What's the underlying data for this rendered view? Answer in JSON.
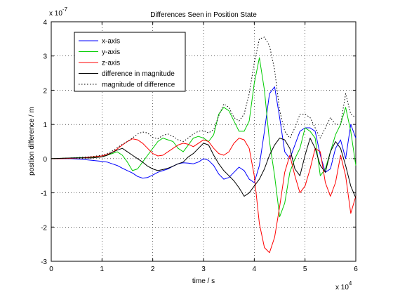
{
  "chart_data": {
    "type": "line",
    "title": "Differences Seen in Position State",
    "xlabel": "time / s",
    "ylabel": "position difference / m",
    "x_multiplier_label": "x 10",
    "x_multiplier_exp": "4",
    "y_multiplier_label": "x 10",
    "y_multiplier_exp": "-7",
    "xlim": [
      0,
      6
    ],
    "ylim": [
      -3,
      4
    ],
    "xticks": [
      0,
      1,
      2,
      3,
      4,
      5,
      6
    ],
    "yticks": [
      -3,
      -2,
      -1,
      0,
      1,
      2,
      3,
      4
    ],
    "grid": true,
    "legend_position": "top-left",
    "x": [
      0,
      0.2,
      0.4,
      0.6,
      0.8,
      1.0,
      1.1,
      1.2,
      1.3,
      1.4,
      1.5,
      1.6,
      1.7,
      1.8,
      1.9,
      2.0,
      2.1,
      2.2,
      2.3,
      2.4,
      2.5,
      2.6,
      2.7,
      2.8,
      2.9,
      3.0,
      3.1,
      3.2,
      3.3,
      3.4,
      3.5,
      3.6,
      3.7,
      3.8,
      3.9,
      4.0,
      4.1,
      4.2,
      4.3,
      4.4,
      4.5,
      4.6,
      4.7,
      4.8,
      4.9,
      5.0,
      5.1,
      5.2,
      5.3,
      5.4,
      5.5,
      5.6,
      5.7,
      5.8,
      5.9,
      6.0
    ],
    "series": [
      {
        "name": "x-axis",
        "color": "#0000ff",
        "dash": "",
        "values": [
          0,
          0,
          0,
          -0.02,
          -0.05,
          -0.08,
          -0.1,
          -0.15,
          -0.2,
          -0.28,
          -0.35,
          -0.42,
          -0.52,
          -0.57,
          -0.55,
          -0.48,
          -0.4,
          -0.35,
          -0.3,
          -0.22,
          -0.15,
          -0.12,
          -0.13,
          -0.15,
          -0.1,
          0.0,
          -0.05,
          -0.2,
          -0.45,
          -0.6,
          -0.55,
          -0.4,
          -0.25,
          -0.35,
          -0.6,
          -0.7,
          -0.2,
          0.8,
          1.9,
          2.1,
          1.2,
          0.2,
          0.0,
          0.4,
          0.8,
          0.9,
          0.9,
          0.8,
          0.1,
          -0.4,
          -0.3,
          0.3,
          0.55,
          0.0,
          1.0,
          0.6
        ]
      },
      {
        "name": "y-axis",
        "color": "#00cc00",
        "dash": "",
        "values": [
          0,
          0.01,
          0.02,
          0.03,
          0.04,
          0.05,
          0.1,
          0.15,
          0.2,
          0.1,
          -0.1,
          -0.35,
          -0.3,
          -0.1,
          0.1,
          0.3,
          0.5,
          0.6,
          0.55,
          0.5,
          0.3,
          0.2,
          0.4,
          0.6,
          0.65,
          0.6,
          0.5,
          0.7,
          1.3,
          1.5,
          1.4,
          1.1,
          0.8,
          0.8,
          1.1,
          2.2,
          2.95,
          2.0,
          0.5,
          -0.5,
          -1.7,
          -1.3,
          -0.4,
          0.0,
          0.3,
          0.9,
          0.8,
          0.6,
          -0.5,
          -0.3,
          0.2,
          0.7,
          1.0,
          1.5,
          0.8,
          -0.2
        ]
      },
      {
        "name": "z-axis",
        "color": "#ff0000",
        "dash": "",
        "values": [
          0,
          0,
          0.01,
          0.02,
          0.05,
          0.08,
          0.12,
          0.18,
          0.28,
          0.4,
          0.5,
          0.58,
          0.55,
          0.45,
          0.3,
          0.15,
          0.08,
          0.1,
          0.2,
          0.3,
          0.4,
          0.45,
          0.42,
          0.35,
          0.45,
          0.55,
          0.5,
          0.3,
          0.15,
          0.1,
          0.2,
          0.45,
          0.6,
          0.55,
          0.3,
          -0.5,
          -1.9,
          -2.6,
          -2.75,
          -2.3,
          -1.4,
          -0.4,
          0.1,
          -0.5,
          -1.0,
          -0.8,
          -0.3,
          0.3,
          0.2,
          -0.7,
          -1.1,
          -0.7,
          0.1,
          -0.5,
          -1.6,
          -1.1
        ]
      },
      {
        "name": "difference in magnitude",
        "color": "#000000",
        "dash": "",
        "values": [
          0,
          0.01,
          0.02,
          0.02,
          0.02,
          0.05,
          0.1,
          0.18,
          0.25,
          0.3,
          0.2,
          0.1,
          0.0,
          -0.1,
          -0.22,
          -0.3,
          -0.35,
          -0.32,
          -0.28,
          -0.22,
          -0.15,
          -0.1,
          0.05,
          0.15,
          0.3,
          0.45,
          0.4,
          0.1,
          -0.15,
          -0.35,
          -0.5,
          -0.65,
          -0.85,
          -1.1,
          -1.0,
          -0.8,
          -0.6,
          -0.3,
          0.1,
          0.4,
          0.6,
          0.55,
          0.3,
          -0.3,
          -0.5,
          0.1,
          0.6,
          0.3,
          -0.2,
          -0.4,
          0.2,
          0.5,
          0.3,
          -0.2,
          -0.8,
          -1.15
        ]
      },
      {
        "name": "magnitude of difference",
        "color": "#000000",
        "dash": "1.5 2.5",
        "values": [
          0,
          0.01,
          0.02,
          0.04,
          0.06,
          0.1,
          0.15,
          0.22,
          0.32,
          0.42,
          0.5,
          0.6,
          0.72,
          0.78,
          0.75,
          0.62,
          0.58,
          0.68,
          0.72,
          0.65,
          0.55,
          0.5,
          0.6,
          0.72,
          0.8,
          0.82,
          0.75,
          0.85,
          1.25,
          1.6,
          1.5,
          1.2,
          1.1,
          1.3,
          1.9,
          2.8,
          3.5,
          3.55,
          3.3,
          2.6,
          1.4,
          0.8,
          0.6,
          0.9,
          1.3,
          1.3,
          1.2,
          0.9,
          0.6,
          0.9,
          1.2,
          1.0,
          1.0,
          1.9,
          1.3,
          1.2
        ]
      }
    ]
  }
}
